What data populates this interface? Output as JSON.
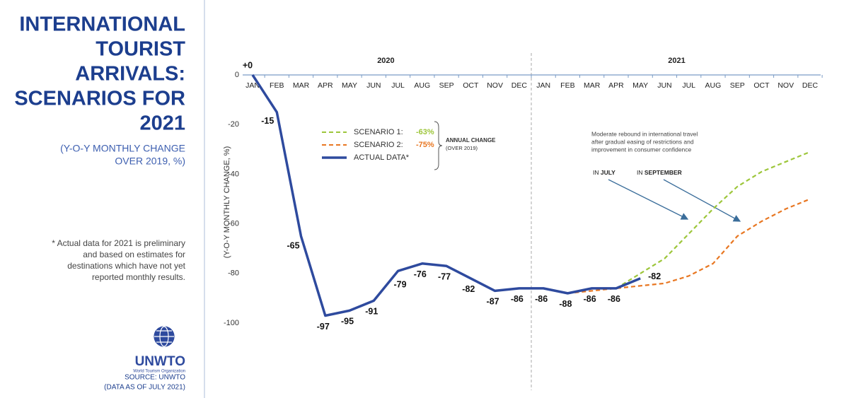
{
  "panel": {
    "title_lines": [
      "INTERNATIONAL",
      "TOURIST",
      "ARRIVALS:",
      "SCENARIOS FOR",
      "2021"
    ],
    "subtitle_lines": [
      "(Y-O-Y MONTHLY CHANGE",
      "OVER 2019, %)"
    ],
    "footnote_lines": [
      "* Actual data for 2021 is preliminary",
      "and based on estimates for",
      "destinations which have not yet",
      "reported monthly results."
    ],
    "logo": {
      "name": "UNWTO",
      "tagline": "World Tourism Organization"
    },
    "source_lines": [
      "SOURCE: UNWTO",
      "(DATA AS OF JULY 2021)"
    ]
  },
  "chart_data": {
    "type": "line",
    "y_label": "(Y-O-Y MONTHLY CHANGE, %)",
    "years": [
      "2020",
      "2021"
    ],
    "categories": [
      "JAN",
      "FEB",
      "MAR",
      "APR",
      "MAY",
      "JUN",
      "JUL",
      "AUG",
      "SEP",
      "OCT",
      "NOV",
      "DEC",
      "JAN",
      "FEB",
      "MAR",
      "APR",
      "MAY",
      "JUN",
      "JUL",
      "AUG",
      "SEP",
      "OCT",
      "NOV",
      "DEC"
    ],
    "ylim": [
      -100,
      0
    ],
    "yticks": [
      0,
      -20,
      -40,
      -60,
      -80,
      -100
    ],
    "grid": false,
    "series": [
      {
        "name": "SCENARIO 1:",
        "annual_change": "-63%",
        "color": "#9dc63b",
        "dashed": true,
        "values": [
          null,
          null,
          null,
          null,
          null,
          null,
          null,
          null,
          null,
          null,
          null,
          null,
          null,
          null,
          null,
          -86,
          -80,
          -74,
          -64,
          -54,
          -45,
          -39,
          -35,
          -31
        ]
      },
      {
        "name": "SCENARIO 2:",
        "annual_change": "-75%",
        "color": "#e87722",
        "dashed": true,
        "values": [
          null,
          null,
          null,
          null,
          null,
          null,
          null,
          null,
          null,
          null,
          null,
          null,
          null,
          -88,
          -87,
          -86,
          -85,
          -84,
          -81,
          -76,
          -65,
          -59,
          -54,
          -50
        ]
      },
      {
        "name": "ACTUAL DATA*",
        "color": "#2e4a9e",
        "dashed": false,
        "values": [
          0,
          -15,
          -65,
          -97,
          -95,
          -91,
          -79,
          -76,
          -77,
          -82,
          -87,
          -86,
          -86,
          -88,
          -86,
          -86,
          -82,
          null,
          null,
          null,
          null,
          null,
          null,
          null
        ],
        "value_labels": [
          "+0",
          "-15",
          "-65",
          "-97",
          "-95",
          "-91",
          "-79",
          "-76",
          "-77",
          "-82",
          "-87",
          "-86",
          "-86",
          "-88",
          "-86",
          "-86",
          "-82",
          null,
          null,
          null,
          null,
          null,
          null,
          null
        ]
      }
    ],
    "legend_note": {
      "title": "ANNUAL CHANGE",
      "subtitle": "(OVER 2019)"
    },
    "annotation": {
      "lines": [
        "Moderate rebound in international travel",
        "after gradual easing of restrictions and",
        "improvement in consumer confidence"
      ]
    },
    "callouts": [
      {
        "prefix": "IN ",
        "bold": "JULY"
      },
      {
        "prefix": "IN ",
        "bold": "SEPTEMBER"
      }
    ]
  }
}
